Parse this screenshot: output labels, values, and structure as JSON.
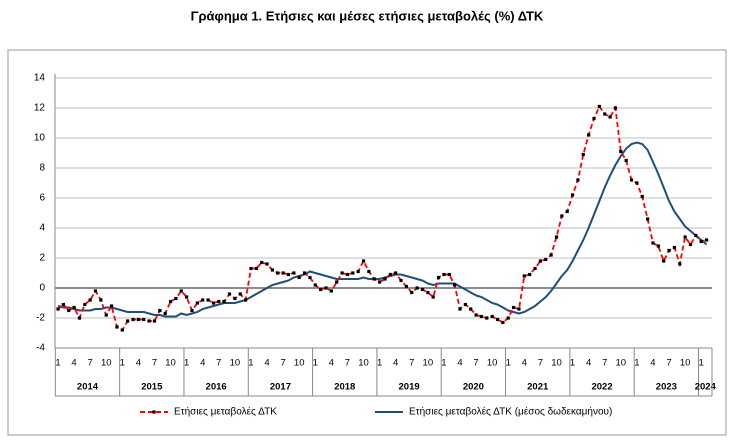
{
  "chart_data": {
    "type": "line",
    "title": "Γράφημα 1. Ετήσιες και μέσες ετήσιες μεταβολές (%) ΔΤΚ",
    "categories": [
      "1",
      null,
      null,
      "4",
      null,
      null,
      "7",
      null,
      null,
      "10",
      null,
      null,
      "1",
      null,
      null,
      "4",
      null,
      null,
      "7",
      null,
      null,
      "10",
      null,
      null,
      "1",
      null,
      null,
      "4",
      null,
      null,
      "7",
      null,
      null,
      "10",
      null,
      null,
      "1",
      null,
      null,
      "4",
      null,
      null,
      "7",
      null,
      null,
      "10",
      null,
      null,
      "1",
      null,
      null,
      "4",
      null,
      null,
      "7",
      null,
      null,
      "10",
      null,
      null,
      "1",
      null,
      null,
      "4",
      null,
      null,
      "7",
      null,
      null,
      "10",
      null,
      null,
      "1",
      null,
      null,
      "4",
      null,
      null,
      "7",
      null,
      null,
      "10",
      null,
      null,
      "1",
      null,
      null,
      "4",
      null,
      null,
      "7",
      null,
      null,
      "10",
      null,
      null,
      "1",
      null,
      null,
      "4",
      null,
      null,
      "7",
      null,
      null,
      "10",
      null,
      null,
      "1",
      null,
      null,
      "4",
      null,
      null,
      "7",
      null,
      null,
      "10",
      null,
      null,
      "1",
      null
    ],
    "years": [
      "2014",
      "2015",
      "2016",
      "2017",
      "2018",
      "2019",
      "2020",
      "2021",
      "2022",
      "2023",
      "2024"
    ],
    "series": [
      {
        "name": "Ετήσιες μεταβολές ΔΤΚ",
        "color": "#ff0000",
        "style": "dashed-markers",
        "values": [
          -1.4,
          -1.1,
          -1.5,
          -1.3,
          -2.0,
          -1.1,
          -0.8,
          -0.2,
          -0.8,
          -1.8,
          -1.2,
          -2.6,
          -2.8,
          -2.2,
          -2.1,
          -2.1,
          -2.1,
          -2.2,
          -2.2,
          -1.5,
          -1.7,
          -0.9,
          -0.7,
          -0.2,
          -0.6,
          -1.5,
          -1.0,
          -0.8,
          -0.8,
          -1.0,
          -0.9,
          -0.9,
          -0.4,
          -0.7,
          -0.4,
          -0.8,
          1.3,
          1.3,
          1.7,
          1.6,
          1.2,
          1.0,
          1.0,
          0.9,
          1.0,
          0.7,
          1.0,
          0.7,
          0.2,
          -0.1,
          0.0,
          -0.2,
          0.4,
          1.0,
          0.9,
          1.0,
          1.1,
          1.8,
          1.1,
          0.6,
          0.4,
          0.6,
          0.9,
          1.0,
          0.5,
          0.1,
          -0.3,
          0.0,
          -0.1,
          -0.3,
          -0.6,
          0.7,
          0.9,
          0.9,
          0.2,
          -1.4,
          -1.1,
          -1.4,
          -1.8,
          -1.9,
          -2.0,
          -1.9,
          -2.1,
          -2.3,
          -2.0,
          -1.3,
          -1.4,
          0.8,
          0.9,
          1.3,
          1.8,
          1.9,
          2.2,
          3.4,
          4.8,
          5.1,
          6.2,
          7.2,
          8.9,
          10.2,
          11.3,
          12.1,
          11.6,
          11.4,
          12.0,
          9.1,
          8.5,
          7.2,
          7.0,
          6.1,
          4.6,
          3.0,
          2.8,
          1.8,
          2.5,
          2.7,
          1.6,
          3.4,
          2.9,
          3.5,
          3.1,
          3.2
        ]
      },
      {
        "name": "Ετήσιες μεταβολές ΔΤΚ (μέσος δωδεκαμήνου)",
        "color": "#1f4e79",
        "style": "solid",
        "values": [
          -1.2,
          -1.3,
          -1.3,
          -1.4,
          -1.5,
          -1.5,
          -1.5,
          -1.4,
          -1.4,
          -1.3,
          -1.3,
          -1.4,
          -1.5,
          -1.6,
          -1.6,
          -1.6,
          -1.6,
          -1.7,
          -1.8,
          -1.8,
          -1.9,
          -1.9,
          -1.9,
          -1.7,
          -1.8,
          -1.7,
          -1.6,
          -1.4,
          -1.3,
          -1.2,
          -1.1,
          -1.0,
          -1.0,
          -1.0,
          -0.9,
          -0.8,
          -0.6,
          -0.4,
          -0.2,
          0.0,
          0.2,
          0.3,
          0.4,
          0.5,
          0.7,
          0.8,
          0.9,
          1.1,
          1.0,
          0.9,
          0.8,
          0.7,
          0.6,
          0.6,
          0.6,
          0.6,
          0.6,
          0.7,
          0.6,
          0.6,
          0.6,
          0.7,
          0.8,
          0.9,
          0.9,
          0.8,
          0.7,
          0.6,
          0.5,
          0.3,
          0.2,
          0.3,
          0.3,
          0.3,
          0.3,
          0.1,
          -0.1,
          -0.3,
          -0.5,
          -0.6,
          -0.8,
          -1.0,
          -1.1,
          -1.3,
          -1.5,
          -1.6,
          -1.7,
          -1.6,
          -1.4,
          -1.2,
          -0.9,
          -0.6,
          -0.2,
          0.3,
          0.8,
          1.2,
          1.8,
          2.5,
          3.2,
          4.0,
          4.9,
          5.8,
          6.7,
          7.5,
          8.2,
          8.8,
          9.3,
          9.6,
          9.7,
          9.6,
          9.2,
          8.4,
          7.6,
          6.7,
          5.8,
          5.1,
          4.6,
          4.1,
          3.8,
          3.5,
          3.2,
          2.9
        ]
      }
    ],
    "ylim": [
      -4,
      14
    ],
    "yticks": [
      -4,
      -2,
      0,
      2,
      4,
      6,
      8,
      10,
      12,
      14
    ],
    "grid": true,
    "legend": "bottom"
  }
}
